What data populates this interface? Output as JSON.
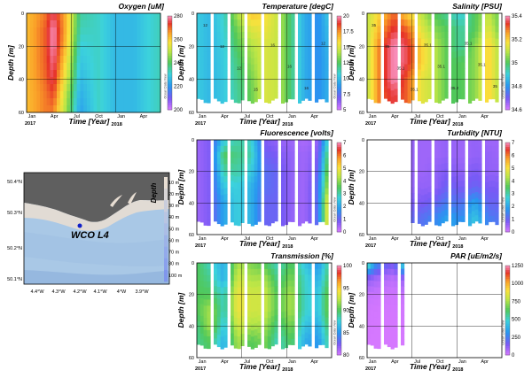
{
  "figure": {
    "colorbar_credit": "Ocean Data View",
    "time_axis": {
      "months": [
        "Jan",
        "Apr",
        "Jul",
        "Oct",
        "Jan",
        "Apr"
      ],
      "years": [
        "2017",
        "2018"
      ],
      "label": "Time [Year]"
    },
    "depth_axis_label": "Depth [m]"
  },
  "map": {
    "station_label": "WCO L4",
    "lat_ticks": [
      "50.4°N",
      "50.3°N",
      "50.2°N",
      "50.1°N"
    ],
    "lon_ticks": [
      "4.4°W",
      "4.3°W",
      "4.2°W",
      "4.1°W",
      "4°W",
      "3.9°W"
    ],
    "depth_scale_title": "Depth",
    "depth_scale_labels": [
      "10 m",
      "20 m",
      "30 m",
      "40 m",
      "50 m",
      "60 m",
      "70 m",
      "80 m",
      "100 m"
    ],
    "colors": {
      "land": "#5f5f5f",
      "sea": "#a9c8e6",
      "shallow": "#e7ddd2",
      "station": "#1020c8"
    }
  },
  "chart_data": [
    {
      "type": "heatmap",
      "variable": "oxygen",
      "title": "Oxygen [uM]",
      "xlabel": "Time [Year]",
      "ylabel": "Depth [m]",
      "xlim": [
        2017.0,
        2018.5
      ],
      "ylim": [
        60,
        0
      ],
      "depth_ticks": [
        0,
        20,
        40,
        60
      ],
      "colorbar": {
        "ticks": [
          280,
          260,
          240,
          220,
          200
        ],
        "range": [
          200,
          280
        ],
        "scheme": "odv"
      },
      "sample_times": [
        2017.0,
        2017.2,
        2017.3,
        2017.45,
        2017.6,
        2017.8,
        2018.0,
        2018.2,
        2018.35,
        2018.5
      ],
      "depths": [
        0,
        10,
        20,
        30,
        40,
        50,
        60
      ],
      "values": [
        [
          262,
          262,
          262,
          262,
          262,
          262,
          262
        ],
        [
          268,
          270,
          270,
          270,
          269,
          268,
          268
        ],
        [
          276,
          280,
          280,
          278,
          276,
          272,
          268
        ],
        [
          262,
          262,
          260,
          256,
          252,
          248,
          246
        ],
        [
          235,
          233,
          230,
          228,
          226,
          224,
          222
        ],
        [
          232,
          232,
          232,
          232,
          232,
          232,
          232
        ],
        [
          226,
          226,
          226,
          226,
          226,
          226,
          226
        ],
        [
          226,
          226,
          226,
          226,
          226,
          226,
          226
        ],
        [
          230,
          230,
          230,
          230,
          230,
          230,
          230
        ],
        [
          233,
          233,
          233,
          233,
          233,
          233,
          233
        ]
      ],
      "coverage": "full"
    },
    {
      "type": "heatmap",
      "variable": "temperature",
      "title": "Temperature [degC]",
      "xlabel": "Time [Year]",
      "ylabel": "Depth [m]",
      "xlim": [
        2017.0,
        2018.5
      ],
      "ylim": [
        60,
        0
      ],
      "depth_ticks": [
        0,
        20,
        40,
        60
      ],
      "colorbar": {
        "ticks": [
          20,
          17.5,
          15,
          12.5,
          10,
          7.5,
          5
        ],
        "range": [
          5,
          20
        ],
        "scheme": "odv"
      },
      "sample_times": [
        2017.0,
        2017.15,
        2017.3,
        2017.45,
        2017.6,
        2017.75,
        2017.9,
        2018.05,
        2018.2,
        2018.35,
        2018.5
      ],
      "depths": [
        0,
        10,
        20,
        30,
        40,
        50
      ],
      "values": [
        [
          10.5,
          10.5,
          10.5,
          10.5,
          10.5,
          10.5
        ],
        [
          9.8,
          9.8,
          9.8,
          9.8,
          9.8,
          9.8
        ],
        [
          11.0,
          10.8,
          10.6,
          10.5,
          10.4,
          10.4
        ],
        [
          14.0,
          13.0,
          12.5,
          12.0,
          11.8,
          11.6
        ],
        [
          16.5,
          15.0,
          14.0,
          13.5,
          13.0,
          12.8
        ],
        [
          16.0,
          15.5,
          15.0,
          15.0,
          15.0,
          15.0
        ],
        [
          14.5,
          14.5,
          14.5,
          14.5,
          14.5,
          14.5
        ],
        [
          12.0,
          12.0,
          12.0,
          12.0,
          12.0,
          12.0
        ],
        [
          9.5,
          9.5,
          9.5,
          9.5,
          9.5,
          9.5
        ],
        [
          8.5,
          8.5,
          8.5,
          8.5,
          8.5,
          8.5
        ],
        [
          11.0,
          10.5,
          10.2,
          10.0,
          10.0,
          10.0
        ]
      ],
      "contour_labels": [
        "12",
        "12",
        "12",
        "15",
        "16",
        "16",
        "16",
        "12"
      ],
      "coverage": "profiles"
    },
    {
      "type": "heatmap",
      "variable": "salinity",
      "title": "Salinity [PSU]",
      "xlabel": "Time [Year]",
      "ylabel": "Depth [m]",
      "xlim": [
        2017.0,
        2018.5
      ],
      "ylim": [
        60,
        0
      ],
      "depth_ticks": [
        0,
        20,
        40,
        60
      ],
      "colorbar": {
        "ticks": [
          35.4,
          35.2,
          35,
          34.8,
          34.6
        ],
        "range": [
          34.6,
          35.4
        ],
        "scheme": "odv"
      },
      "sample_times": [
        2017.0,
        2017.15,
        2017.3,
        2017.45,
        2017.6,
        2017.75,
        2017.9,
        2018.05,
        2018.2,
        2018.35,
        2018.5
      ],
      "depths": [
        0,
        10,
        20,
        30,
        40,
        50
      ],
      "values": [
        [
          35.1,
          35.1,
          35.1,
          35.1,
          35.1,
          35.1
        ],
        [
          35.2,
          35.25,
          35.3,
          35.3,
          35.3,
          35.3
        ],
        [
          35.3,
          35.35,
          35.4,
          35.4,
          35.4,
          35.35
        ],
        [
          35.2,
          35.3,
          35.35,
          35.35,
          35.3,
          35.3
        ],
        [
          35.1,
          35.15,
          35.2,
          35.2,
          35.15,
          35.15
        ],
        [
          35.0,
          35.05,
          35.1,
          35.1,
          35.1,
          35.1
        ],
        [
          34.95,
          35.0,
          35.0,
          35.0,
          35.0,
          35.0
        ],
        [
          34.9,
          34.95,
          34.95,
          35.0,
          35.0,
          35.0
        ],
        [
          35.0,
          35.0,
          35.05,
          35.05,
          35.05,
          35.05
        ],
        [
          35.1,
          35.15,
          35.2,
          35.2,
          35.2,
          35.2
        ],
        [
          35.0,
          35.0,
          35.05,
          35.05,
          35.05,
          35.05
        ]
      ],
      "contour_labels": [
        "35",
        "35",
        "35.1",
        "35.1",
        "35.1",
        "35.1",
        "35.2",
        "35.1",
        "35.1",
        "35"
      ],
      "coverage": "profiles"
    },
    {
      "type": "heatmap",
      "variable": "fluorescence",
      "title": "Fluorescence [volts]",
      "xlabel": "Time [Year]",
      "ylabel": "Depth [m]",
      "xlim": [
        2017.0,
        2018.5
      ],
      "ylim": [
        60,
        0
      ],
      "depth_ticks": [
        0,
        20,
        40,
        60
      ],
      "colorbar": {
        "ticks": [
          7,
          6,
          5,
          4,
          3,
          2,
          1,
          0
        ],
        "range": [
          0,
          7
        ],
        "scheme": "odv"
      },
      "sample_times": [
        2017.0,
        2017.15,
        2017.3,
        2017.45,
        2017.6,
        2017.75,
        2017.9,
        2018.05,
        2018.2,
        2018.35,
        2018.5
      ],
      "depths": [
        0,
        10,
        20,
        30,
        40,
        50
      ],
      "values": [
        [
          0.5,
          0.5,
          0.5,
          0.5,
          0.5,
          0.5
        ],
        [
          0.8,
          0.8,
          0.8,
          0.8,
          0.8,
          0.8
        ],
        [
          2.5,
          3.5,
          3.0,
          2.5,
          2.0,
          2.0
        ],
        [
          3.0,
          3.2,
          3.0,
          2.6,
          2.6,
          2.6
        ],
        [
          2.8,
          3.0,
          2.6,
          2.2,
          2.2,
          2.2
        ],
        [
          0.8,
          1.0,
          1.2,
          1.2,
          1.0,
          1.0
        ],
        [
          0.6,
          0.8,
          1.0,
          1.0,
          1.0,
          1.0
        ],
        [
          0.5,
          0.6,
          0.6,
          0.6,
          0.6,
          0.6
        ],
        [
          0.4,
          0.5,
          0.5,
          0.5,
          0.5,
          0.5
        ],
        [
          0.6,
          0.8,
          1.0,
          1.2,
          1.2,
          1.2
        ],
        [
          3.5,
          4.5,
          5.0,
          5.5,
          6.5,
          6.5
        ]
      ],
      "coverage": "profiles"
    },
    {
      "type": "heatmap",
      "variable": "turbidity",
      "title": "Turbidity [NTU]",
      "xlabel": "Time [Year]",
      "ylabel": "Depth [m]",
      "xlim": [
        2017.0,
        2018.5
      ],
      "ylim": [
        60,
        0
      ],
      "depth_ticks": [
        0,
        20,
        40,
        60
      ],
      "colorbar": {
        "ticks": [
          7,
          6,
          5,
          4,
          3,
          2,
          1,
          0
        ],
        "range": [
          0,
          7
        ],
        "scheme": "odv"
      },
      "sample_times": [
        2017.0,
        2017.15,
        2017.3,
        2017.45,
        2017.6,
        2017.75,
        2017.9,
        2018.05,
        2018.2,
        2018.35,
        2018.5
      ],
      "depths": [
        0,
        10,
        20,
        30,
        40,
        50
      ],
      "values": [
        [
          null,
          null,
          null,
          null,
          null,
          null
        ],
        [
          null,
          null,
          null,
          null,
          null,
          null
        ],
        [
          null,
          null,
          null,
          null,
          null,
          null
        ],
        [
          0.6,
          0.6,
          0.6,
          0.6,
          0.8,
          1.0
        ],
        [
          0.5,
          0.5,
          0.5,
          0.6,
          0.8,
          1.2
        ],
        [
          0.5,
          0.5,
          0.6,
          0.6,
          1.0,
          1.5
        ],
        [
          0.6,
          0.6,
          0.8,
          1.0,
          1.4,
          2.0
        ],
        [
          0.5,
          0.5,
          0.6,
          0.8,
          1.2,
          1.6
        ],
        [
          0.6,
          0.6,
          0.8,
          1.0,
          2.0,
          2.5
        ],
        [
          0.5,
          0.6,
          0.6,
          0.8,
          1.0,
          1.4
        ],
        [
          0.5,
          0.5,
          0.6,
          0.8,
          1.0,
          1.2
        ]
      ],
      "coverage": "profiles_from_jul2017"
    },
    {
      "type": "heatmap",
      "variable": "transmission",
      "title": "Transmission [%]",
      "xlabel": "Time [Year]",
      "ylabel": "Depth [m]",
      "xlim": [
        2017.0,
        2018.5
      ],
      "ylim": [
        60,
        0
      ],
      "depth_ticks": [
        0,
        20,
        40,
        60
      ],
      "colorbar": {
        "ticks": [
          100,
          95,
          90,
          85,
          80
        ],
        "range": [
          80,
          100
        ],
        "scheme": "odv"
      },
      "sample_times": [
        2017.0,
        2017.15,
        2017.3,
        2017.45,
        2017.6,
        2017.75,
        2017.9,
        2018.05,
        2018.2,
        2018.35,
        2018.5
      ],
      "depths": [
        0,
        10,
        20,
        30,
        40,
        50
      ],
      "values": [
        [
          90,
          90,
          90,
          90,
          89,
          89
        ],
        [
          88,
          89,
          90,
          92,
          92,
          90
        ],
        [
          86,
          86,
          88,
          88,
          87,
          86
        ],
        [
          92,
          93,
          94,
          94,
          93,
          92
        ],
        [
          91,
          92,
          93,
          93,
          92,
          90
        ],
        [
          90,
          92,
          93,
          93,
          92,
          91
        ],
        [
          88,
          89,
          90,
          90,
          89,
          88
        ],
        [
          90,
          91,
          92,
          92,
          91,
          90
        ],
        [
          87,
          88,
          88,
          88,
          87,
          86
        ],
        [
          85,
          86,
          87,
          87,
          86,
          85
        ],
        [
          90,
          91,
          92,
          92,
          91,
          90
        ]
      ],
      "coverage": "profiles"
    },
    {
      "type": "heatmap",
      "variable": "par",
      "title": "PAR [uE/m2/s]",
      "xlabel": "Time [Year]",
      "ylabel": "Depth [m]",
      "xlim": [
        2017.0,
        2018.5
      ],
      "ylim": [
        60,
        0
      ],
      "depth_ticks": [
        0,
        20,
        40,
        60
      ],
      "colorbar": {
        "ticks": [
          1250,
          1000,
          750,
          500,
          250,
          0
        ],
        "range": [
          0,
          1250
        ],
        "scheme": "odv"
      },
      "sample_times": [
        2017.0,
        2017.1,
        2017.2,
        2017.3,
        2017.4,
        2017.5
      ],
      "depths": [
        0,
        10,
        20,
        30,
        40,
        50
      ],
      "values": [
        [
          600,
          120,
          30,
          10,
          5,
          2
        ],
        [
          300,
          80,
          20,
          6,
          3,
          1
        ],
        [
          200,
          60,
          15,
          5,
          2,
          1
        ],
        [
          150,
          40,
          10,
          4,
          2,
          1
        ],
        [
          500,
          100,
          25,
          8,
          3,
          1
        ],
        [
          null,
          null,
          null,
          null,
          null,
          null
        ]
      ],
      "coverage": "first_quarter_only"
    }
  ]
}
